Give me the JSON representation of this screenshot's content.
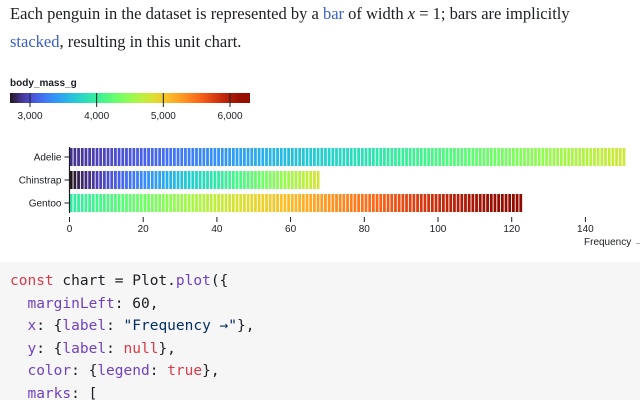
{
  "prose": {
    "line1_before_link": "Each penguin in the dataset is represented by a ",
    "link_bar": "bar",
    "line1_mid": " of width ",
    "math": "x",
    "line1_after_math": " = 1; bars are implicitly",
    "link_stacked": "stacked",
    "line2_after_link": ", resulting in this unit chart."
  },
  "legend": {
    "title": "body_mass_g",
    "ticks": [
      3000,
      4000,
      5000,
      6000
    ],
    "tick_labels": [
      "3,000",
      "4,000",
      "5,000",
      "6,000"
    ],
    "domain": [
      2700,
      6300
    ],
    "colormap": "turbo"
  },
  "chart_data": {
    "type": "bar",
    "orientation": "horizontal-stacked-units",
    "categories": [
      "Adelie",
      "Chinstrap",
      "Gentoo"
    ],
    "values": [
      151,
      68,
      123
    ],
    "xlabel": "Frequency →",
    "ylabel": "",
    "xlim": [
      0,
      152
    ],
    "xticks": [
      0,
      20,
      40,
      60,
      80,
      100,
      120,
      140
    ],
    "color_field": "body_mass_g",
    "body_mass_ranges": {
      "Adelie": [
        2850,
        4775
      ],
      "Chinstrap": [
        2700,
        4800
      ],
      "Gentoo": [
        3950,
        6300
      ]
    }
  },
  "code": {
    "line1_kw": "const",
    "line1_var": " chart = ",
    "line1_obj": "Plot",
    "line1_dot": ".",
    "line1_fn": "plot",
    "line1_end": "({",
    "line2_prop": "marginLeft",
    "line2_rest": ": 60,",
    "line3_prop": "x",
    "line3_a": ": {",
    "line3_prop2": "label",
    "line3_b": ": ",
    "line3_str": "\"Frequency →\"",
    "line3_end": "},",
    "line4_prop": "y",
    "line4_a": ": {",
    "line4_prop2": "label",
    "line4_b": ": ",
    "line4_null": "null",
    "line4_end": "},",
    "line5_prop": "color",
    "line5_a": ": {",
    "line5_prop2": "legend",
    "line5_b": ": ",
    "line5_bool": "true",
    "line5_end": "},",
    "line6_prop": "marks",
    "line6_rest": ": ["
  }
}
